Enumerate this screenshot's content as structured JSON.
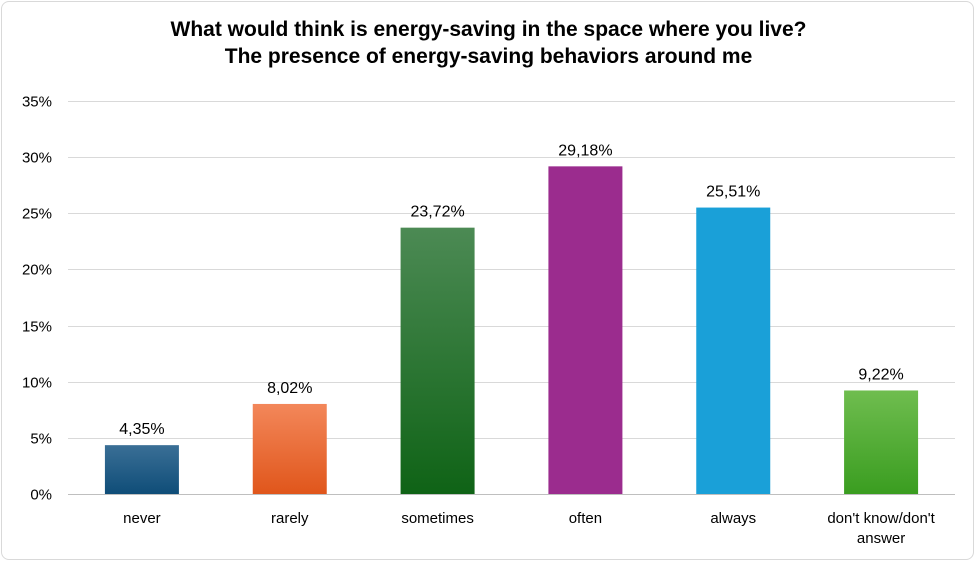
{
  "chart_data": {
    "type": "bar",
    "title_lines": [
      "What would think is energy-saving in the space where you live?",
      "The presence of energy-saving behaviors around me"
    ],
    "categories": [
      "never",
      "rarely",
      "sometimes",
      "often",
      "always",
      "don't know/don't answer"
    ],
    "category_label_lines": [
      [
        "never"
      ],
      [
        "rarely"
      ],
      [
        "sometimes"
      ],
      [
        "often"
      ],
      [
        "always"
      ],
      [
        "don't know/don't",
        "answer"
      ]
    ],
    "values": [
      4.35,
      8.02,
      23.72,
      29.18,
      25.51,
      9.22
    ],
    "data_labels": [
      "4,35%",
      "8,02%",
      "23,72%",
      "29,18%",
      "25,51%",
      "9,22%"
    ],
    "ylim": [
      0,
      35
    ],
    "yticks": [
      0,
      5,
      10,
      15,
      20,
      25,
      30,
      35
    ],
    "ytick_labels": [
      "0%",
      "5%",
      "10%",
      "15%",
      "20%",
      "25%",
      "30%",
      "35%"
    ],
    "grid": true,
    "legend": "none",
    "bar_colors": [
      [
        "#3a6f96",
        "#0f4d78"
      ],
      [
        "#f3875a",
        "#e0561b"
      ],
      [
        "#4c8a54",
        "#0f6316"
      ],
      [
        "#9b2c8e",
        "#9b2c8e"
      ],
      [
        "#1aa0d8",
        "#1aa0d8"
      ],
      [
        "#6fbd4f",
        "#3a9d20"
      ]
    ],
    "gridline_color": "#d9d9d9",
    "axis_color": "#bfbfbf"
  }
}
